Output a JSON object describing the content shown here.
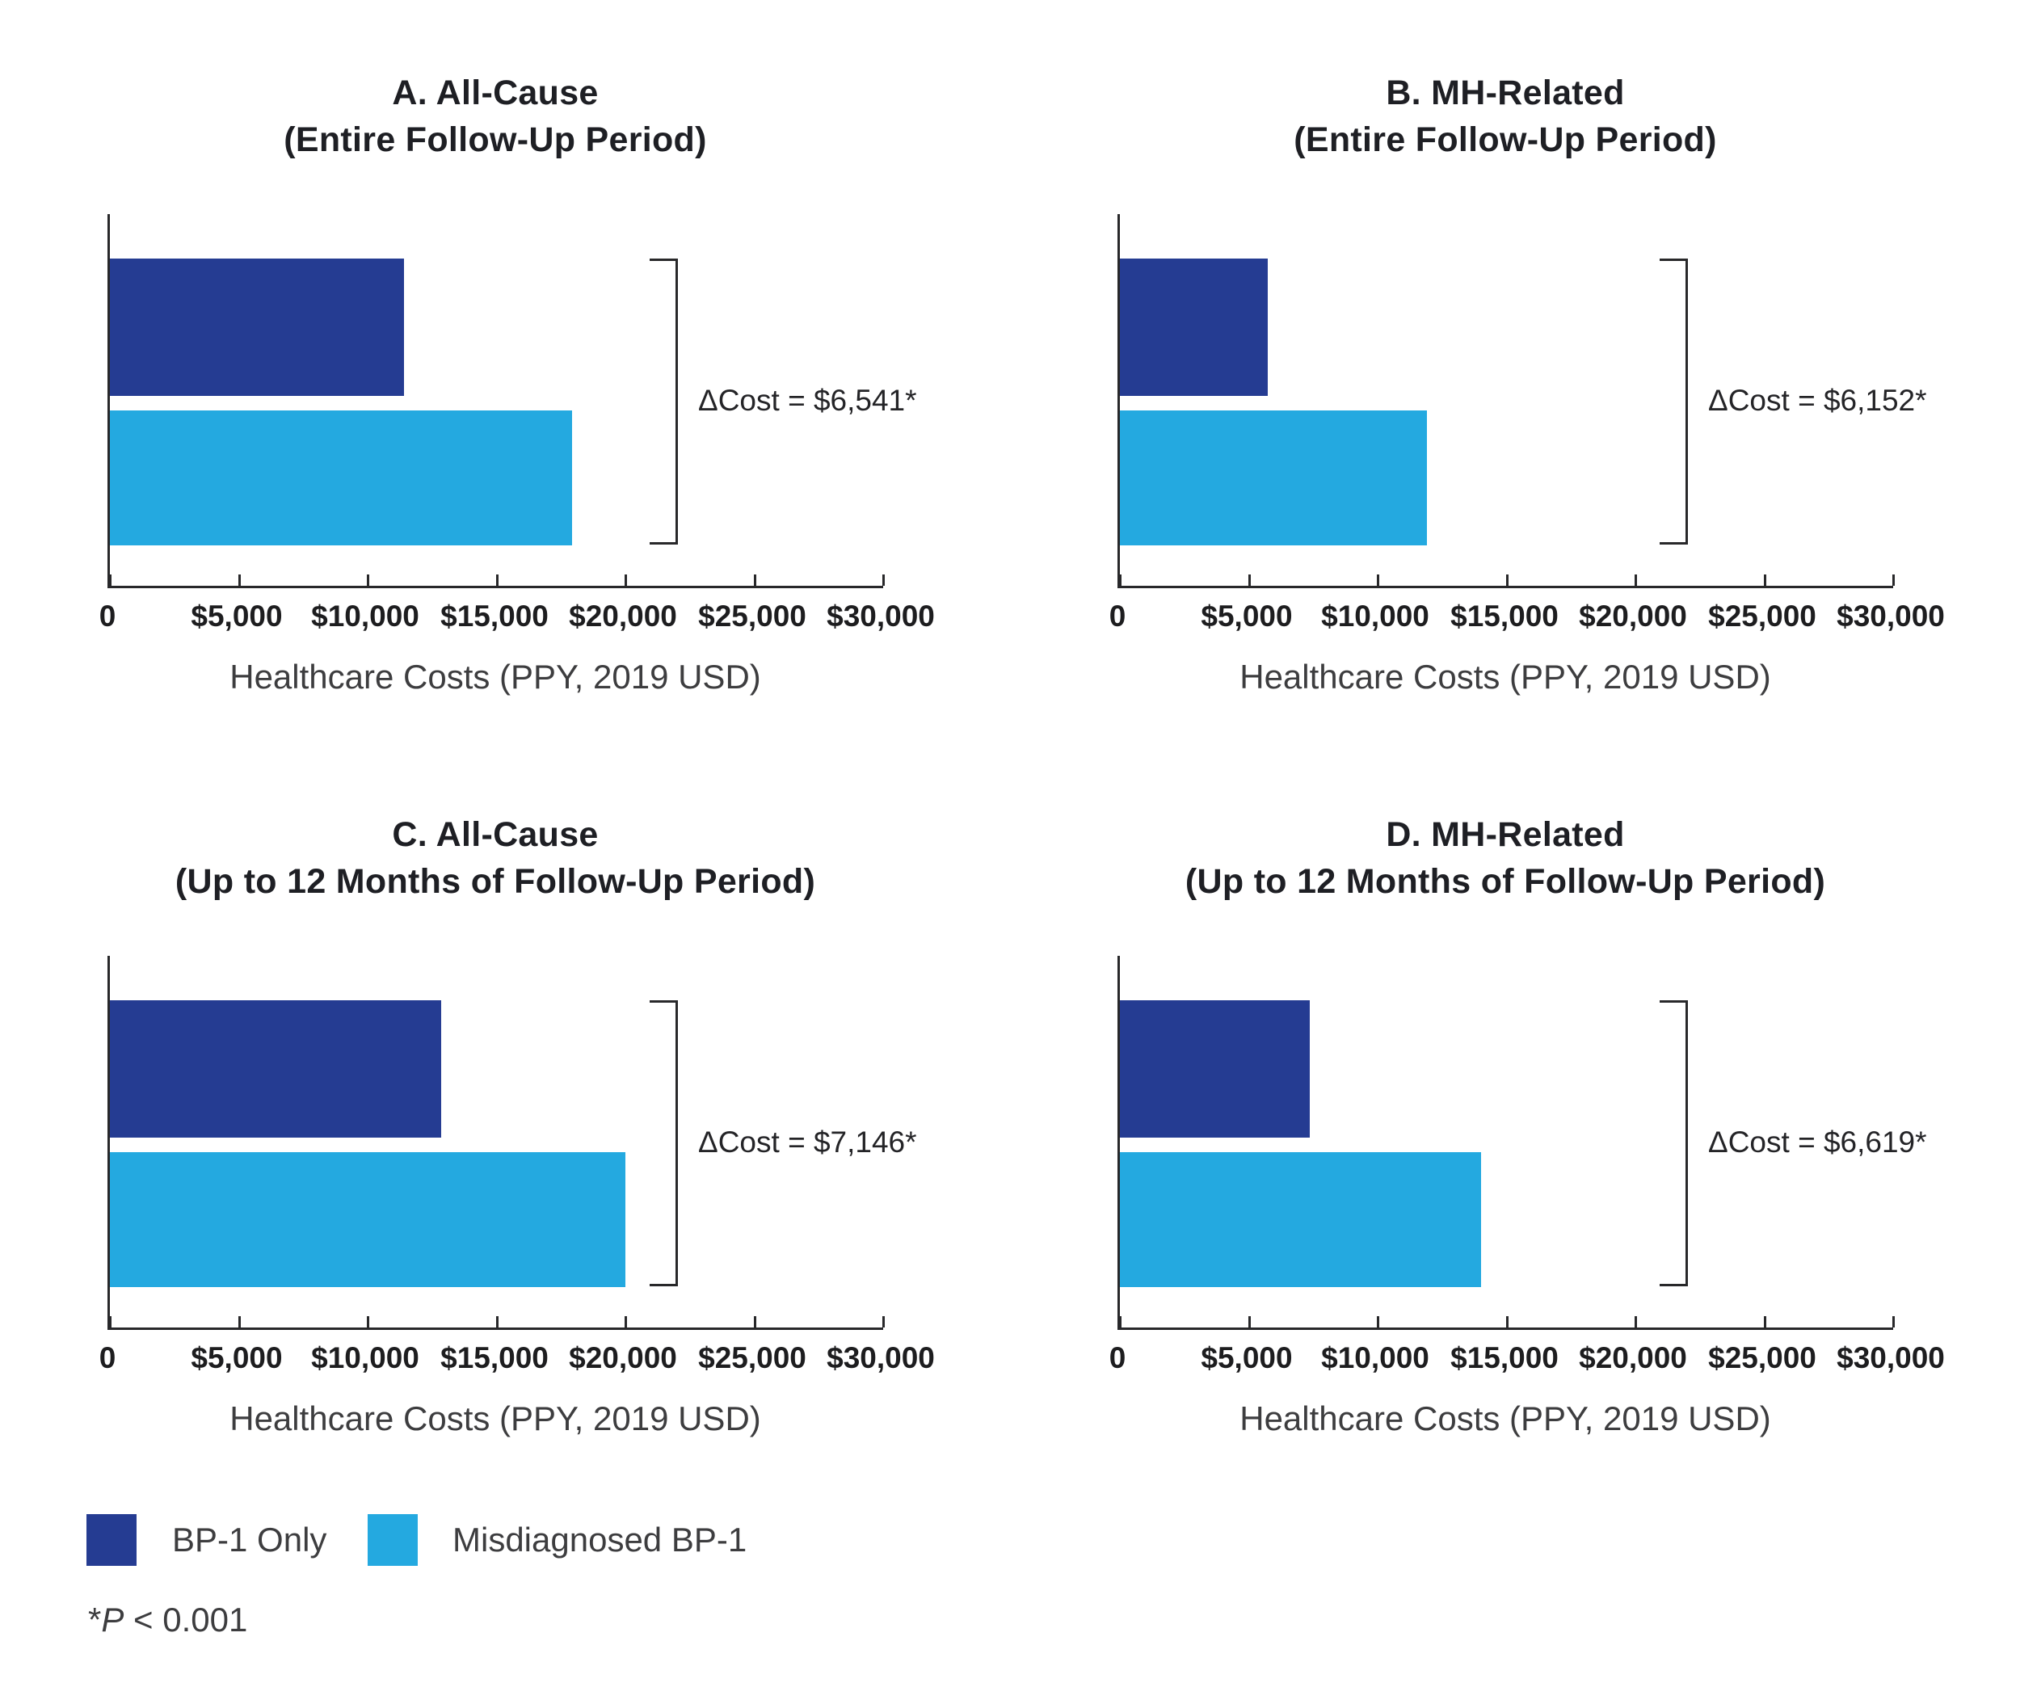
{
  "figure": {
    "axis": {
      "ticks": [
        "0",
        "$5,000",
        "$10,000",
        "$15,000",
        "$20,000",
        "$25,000",
        "$30,000"
      ],
      "tick_values": [
        0,
        5000,
        10000,
        15000,
        20000,
        25000,
        30000
      ],
      "max": 30000,
      "xlabel": "Healthcare Costs (PPY, 2019 USD)"
    },
    "panels": [
      {
        "title_line1": "A. All-Cause",
        "title_line2": "(Entire Follow-Up Period)",
        "delta_label": "ΔCost = $6,541*",
        "xlabel": "Healthcare Costs (PPY, 2019 USD)"
      },
      {
        "title_line1": "B. MH-Related",
        "title_line2": "(Entire Follow-Up Period)",
        "delta_label": "ΔCost = $6,152*",
        "xlabel": "Healthcare Costs (PPY, 2019 USD)"
      },
      {
        "title_line1": "C. All-Cause",
        "title_line2": "(Up to 12 Months of Follow-Up Period)",
        "delta_label": "ΔCost = $7,146*",
        "xlabel": "Healthcare Costs (PPY, 2019 USD)"
      },
      {
        "title_line1": "D. MH-Related",
        "title_line2": "(Up to 12 Months of Follow-Up Period)",
        "delta_label": "ΔCost = $6,619*",
        "xlabel": "Healthcare Costs (PPY, 2019 USD)"
      }
    ],
    "legend": [
      {
        "label": "BP-1 Only",
        "color": "#253c92"
      },
      {
        "label": "Misdiagnosed BP-1",
        "color": "#24a9e0"
      }
    ],
    "footnote": {
      "star": "*",
      "p": "P",
      "rest": " < 0.001"
    },
    "colors": {
      "bp1_only": "#253c92",
      "misdiagnosed": "#24a9e0",
      "axis_line": "#28282a",
      "title_text": "#1e1f24",
      "muted_text": "#3d3d3f"
    }
  },
  "chart_data": [
    {
      "type": "bar",
      "orientation": "horizontal",
      "title": "A. All-Cause (Entire Follow-Up Period)",
      "categories": [
        "BP-1 Only",
        "Misdiagnosed BP-1"
      ],
      "values": [
        11400,
        17941
      ],
      "delta_annotation": "ΔCost = $6,541*",
      "xlabel": "Healthcare Costs (PPY, 2019 USD)",
      "xlim": [
        0,
        30000
      ],
      "xticks": [
        0,
        5000,
        10000,
        15000,
        20000,
        25000,
        30000
      ],
      "grid": false,
      "legend_position": "bottom-left"
    },
    {
      "type": "bar",
      "orientation": "horizontal",
      "title": "B. MH-Related (Entire Follow-Up Period)",
      "categories": [
        "BP-1 Only",
        "Misdiagnosed BP-1"
      ],
      "values": [
        5750,
        11902
      ],
      "delta_annotation": "ΔCost = $6,152*",
      "xlabel": "Healthcare Costs (PPY, 2019 USD)",
      "xlim": [
        0,
        30000
      ],
      "xticks": [
        0,
        5000,
        10000,
        15000,
        20000,
        25000,
        30000
      ],
      "grid": false,
      "legend_position": "bottom-left"
    },
    {
      "type": "bar",
      "orientation": "horizontal",
      "title": "C. All-Cause (Up to 12 Months of Follow-Up Period)",
      "categories": [
        "BP-1 Only",
        "Misdiagnosed BP-1"
      ],
      "values": [
        12854,
        20000
      ],
      "delta_annotation": "ΔCost = $7,146*",
      "xlabel": "Healthcare Costs (PPY, 2019 USD)",
      "xlim": [
        0,
        30000
      ],
      "xticks": [
        0,
        5000,
        10000,
        15000,
        20000,
        25000,
        30000
      ],
      "grid": false,
      "legend_position": "bottom-left"
    },
    {
      "type": "bar",
      "orientation": "horizontal",
      "title": "D. MH-Related (Up to 12 Months of Follow-Up Period)",
      "categories": [
        "BP-1 Only",
        "Misdiagnosed BP-1"
      ],
      "values": [
        7381,
        14000
      ],
      "delta_annotation": "ΔCost = $6,619*",
      "xlabel": "Healthcare Costs (PPY, 2019 USD)",
      "xlim": [
        0,
        30000
      ],
      "xticks": [
        0,
        5000,
        10000,
        15000,
        20000,
        25000,
        30000
      ],
      "grid": false,
      "legend_position": "bottom-left"
    }
  ]
}
